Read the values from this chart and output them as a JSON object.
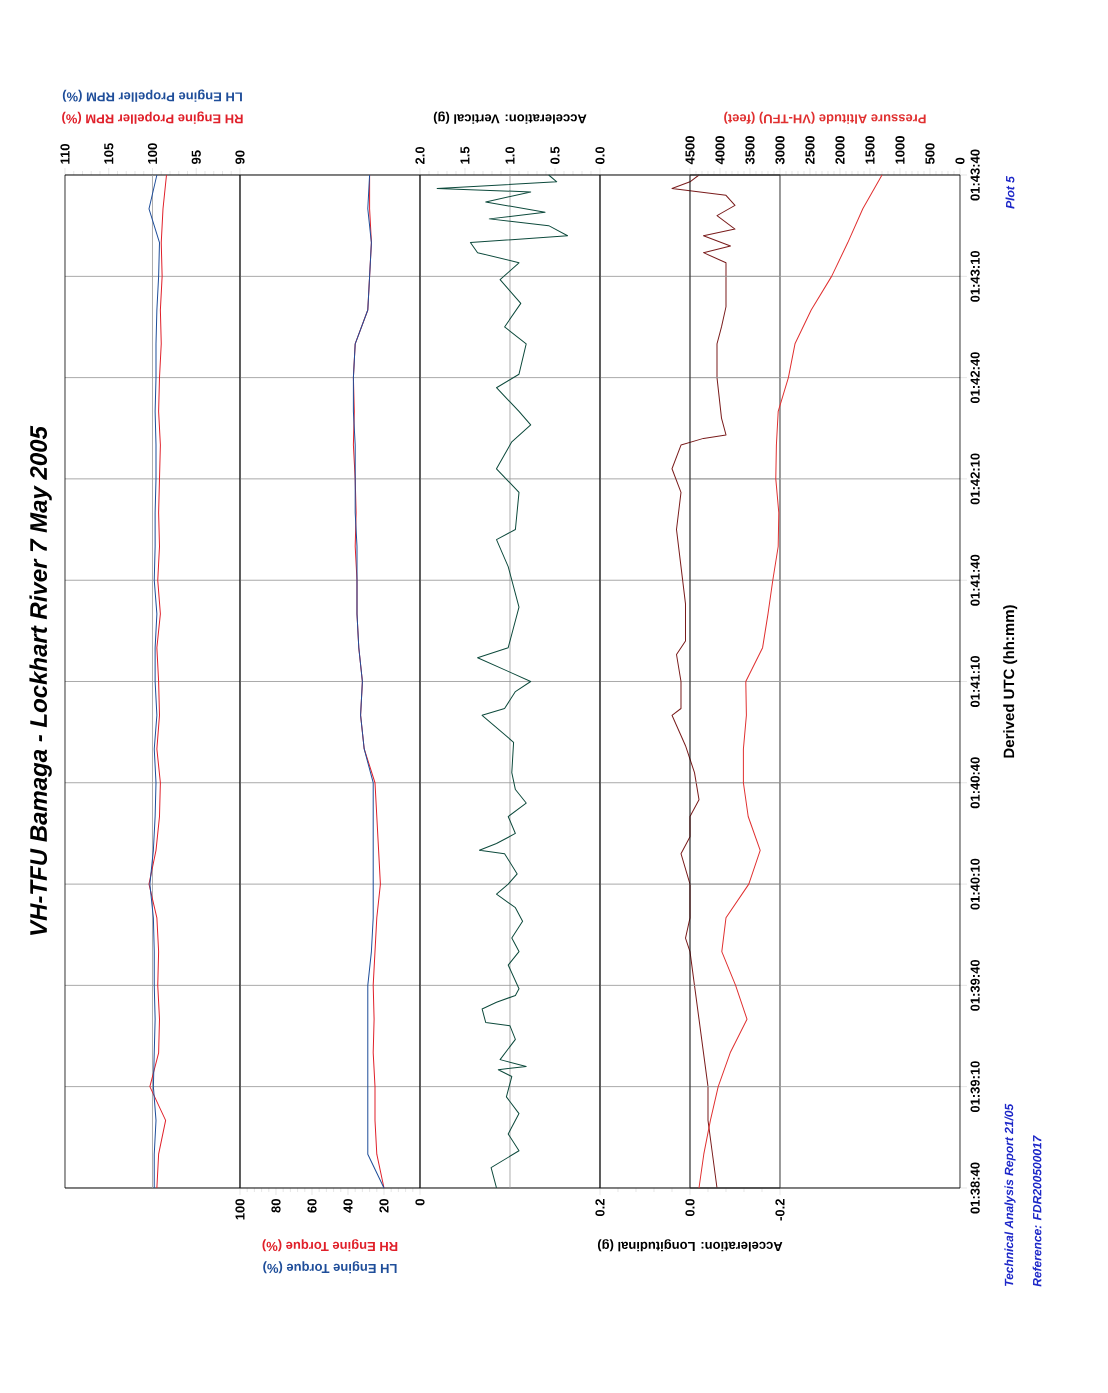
{
  "chart_data": [
    {
      "type": "line",
      "title": "VH-TFU    Bamaga  -  Lockhart River    7 May 2005",
      "grid": "y",
      "tick_labels": "x",
      "xlim": [
        110,
        90
      ],
      "xticks": [
        90,
        95,
        100,
        105,
        110
      ],
      "ylim": [
        1.64444,
        1.72778
      ],
      "yticks": [
        {
          "value": 1.64444,
          "label": null
        },
        {
          "value": 1.65278,
          "label": null
        },
        {
          "value": 1.66111,
          "label": null
        },
        {
          "value": 1.66944,
          "label": null
        },
        {
          "value": 1.67778,
          "label": null
        },
        {
          "value": 1.68611,
          "label": null
        },
        {
          "value": 1.69444,
          "label": null
        },
        {
          "value": 1.70278,
          "label": null
        },
        {
          "value": 1.71111,
          "label": null
        },
        {
          "value": 1.71944,
          "label": null
        },
        {
          "value": 1.72778,
          "label": null
        }
      ],
      "ref_lines": [
        {
          "axis": "x",
          "value": 100
        }
      ],
      "series": [
        {
          "name": "RH Engine Propeller RPM (%)",
          "color": "#e0202a",
          "x": [
            99.5,
            99.3,
            98.5,
            100.3,
            99.3,
            99.2,
            99.4,
            99.3,
            99.5,
            100.4,
            99.6,
            99.2,
            99.1,
            99.5,
            99.2,
            99.3,
            99.5,
            99.1,
            99.4,
            99.2,
            99.3,
            99.2,
            99.1,
            99.3,
            99.2,
            99.0,
            99.1,
            98.9,
            99.0,
            98.8,
            98.4
          ],
          "values": [
            1.64444,
            1.64722,
            1.65,
            1.65278,
            1.65556,
            1.65833,
            1.66111,
            1.66389,
            1.66667,
            1.66944,
            1.67222,
            1.675,
            1.67778,
            1.68056,
            1.68333,
            1.68611,
            1.68889,
            1.69167,
            1.69444,
            1.69722,
            1.7,
            1.70278,
            1.70556,
            1.70833,
            1.71111,
            1.71389,
            1.71667,
            1.71944,
            1.72222,
            1.725,
            1.72778
          ]
        },
        {
          "name": "LH Engine Propeller RPM (%)",
          "color": "#1f4e9a",
          "x": [
            99.8,
            99.8,
            99.6,
            99.9,
            99.8,
            99.7,
            99.8,
            99.8,
            99.9,
            100.3,
            99.9,
            99.7,
            99.6,
            99.8,
            99.5,
            99.7,
            99.7,
            99.5,
            99.8,
            99.7,
            99.7,
            99.6,
            99.6,
            99.7,
            99.6,
            99.6,
            99.5,
            99.3,
            99.2,
            100.4,
            99.5
          ],
          "values": [
            1.64444,
            1.64722,
            1.65,
            1.65278,
            1.65556,
            1.65833,
            1.66111,
            1.66389,
            1.66667,
            1.66944,
            1.67222,
            1.675,
            1.67778,
            1.68056,
            1.68333,
            1.68611,
            1.68889,
            1.69167,
            1.69444,
            1.69722,
            1.7,
            1.70278,
            1.70556,
            1.70833,
            1.71111,
            1.71389,
            1.71667,
            1.71944,
            1.72222,
            1.725,
            1.72778
          ]
        }
      ]
    },
    {
      "type": "line",
      "grid": "y",
      "tick_labels": "x",
      "xlim": [
        100,
        0
      ],
      "xticks": [
        0,
        20,
        40,
        60,
        80,
        100
      ],
      "ylim": [
        1.64444,
        1.72778
      ],
      "yticks": [
        {
          "value": 1.64444,
          "label": null
        },
        {
          "value": 1.65278,
          "label": null
        },
        {
          "value": 1.66111,
          "label": null
        },
        {
          "value": 1.66944,
          "label": null
        },
        {
          "value": 1.67778,
          "label": null
        },
        {
          "value": 1.68611,
          "label": null
        },
        {
          "value": 1.69444,
          "label": null
        },
        {
          "value": 1.70278,
          "label": null
        },
        {
          "value": 1.71111,
          "label": null
        },
        {
          "value": 1.71944,
          "label": null
        },
        {
          "value": 1.72778,
          "label": null
        }
      ],
      "series": [
        {
          "name": "RH Engine Torque (%)",
          "color": "#e0202a",
          "x": [
            20,
            24,
            25,
            25,
            26,
            25.5,
            26,
            25,
            24,
            22,
            23,
            24,
            25,
            31,
            33,
            32,
            34,
            35,
            35,
            36,
            35.5,
            36,
            37,
            36.5,
            37,
            36,
            29,
            28,
            27,
            28,
            28
          ],
          "values": [
            1.64444,
            1.64722,
            1.65,
            1.65278,
            1.65556,
            1.65833,
            1.66111,
            1.66389,
            1.66667,
            1.66944,
            1.67222,
            1.675,
            1.67778,
            1.68056,
            1.68333,
            1.68611,
            1.68889,
            1.69167,
            1.69444,
            1.69722,
            1.7,
            1.70278,
            1.70556,
            1.70833,
            1.71111,
            1.71389,
            1.71667,
            1.71944,
            1.72222,
            1.725,
            1.72778
          ]
        },
        {
          "name": "LH Engine Torque (%)",
          "color": "#1f4e9a",
          "x": [
            20,
            29,
            29,
            29,
            29,
            29,
            29,
            27,
            26,
            26,
            26,
            26,
            26,
            31,
            33,
            32,
            34,
            35,
            35,
            35,
            36,
            36,
            36,
            37,
            37,
            36,
            29,
            28,
            27,
            29,
            28
          ],
          "values": [
            1.64444,
            1.64722,
            1.65,
            1.65278,
            1.65556,
            1.65833,
            1.66111,
            1.66389,
            1.66667,
            1.66944,
            1.67222,
            1.675,
            1.67778,
            1.68056,
            1.68333,
            1.68611,
            1.68889,
            1.69167,
            1.69444,
            1.69722,
            1.7,
            1.70278,
            1.70556,
            1.70833,
            1.71111,
            1.71389,
            1.71667,
            1.71944,
            1.72222,
            1.725,
            1.72778
          ]
        }
      ]
    },
    {
      "type": "line",
      "grid": "y",
      "tick_labels": "x",
      "xlabel": "Acceleration:  Vertical  (g)",
      "xlim": [
        2,
        0
      ],
      "xticks": [
        {
          "value": 0,
          "label": "0.0"
        },
        {
          "value": 0.5,
          "label": "0.5"
        },
        {
          "value": 1,
          "label": "1.0"
        },
        {
          "value": 1.5,
          "label": "1.5"
        },
        {
          "value": 2,
          "label": "2.0"
        }
      ],
      "ylim": [
        1.64444,
        1.72778
      ],
      "yticks": [
        {
          "value": 1.64444,
          "label": null
        },
        {
          "value": 1.65278,
          "label": null
        },
        {
          "value": 1.66111,
          "label": null
        },
        {
          "value": 1.66944,
          "label": null
        },
        {
          "value": 1.67778,
          "label": null
        },
        {
          "value": 1.68611,
          "label": null
        },
        {
          "value": 1.69444,
          "label": null
        },
        {
          "value": 1.70278,
          "label": null
        },
        {
          "value": 1.71111,
          "label": null
        },
        {
          "value": 1.71944,
          "label": null
        },
        {
          "value": 1.72778,
          "label": null
        }
      ],
      "ref_lines": [
        {
          "axis": "x",
          "value": 1
        }
      ],
      "series": [
        {
          "color": "#0d4a3c",
          "x": [
            1.15,
            1.21,
            0.9,
            1.02,
            0.9,
            1.04,
            0.98,
            1.13,
            0.82,
            1.11,
            0.94,
            1.0,
            1.27,
            1.31,
            1.15,
            0.94,
            0.9,
            1.02,
            0.9,
            0.98,
            0.86,
            0.94,
            1.15,
            1.02,
            0.92,
            1.06,
            1.34,
            1.15,
            0.94,
            1.02,
            0.82,
            0.94,
            0.98,
            0.96,
            1.31,
            1.06,
            0.94,
            0.77,
            1.02,
            1.36,
            1.02,
            0.9,
            1.02,
            1.15,
            0.94,
            0.9,
            1.15,
            0.98,
            0.77,
            0.9,
            1.15,
            0.9,
            0.82,
            1.06,
            0.88,
            1.11,
            0.9,
            1.36,
            1.44,
            0.36,
            0.57,
            1.23,
            0.61,
            1.27,
            0.77,
            1.81,
            0.48,
            0.57
          ],
          "values": [
            1.64444,
            1.64611,
            1.6475,
            1.64889,
            1.65056,
            1.65194,
            1.65361,
            1.65417,
            1.65444,
            1.655,
            1.65667,
            1.65778,
            1.65806,
            1.65917,
            1.65972,
            1.66028,
            1.66083,
            1.66278,
            1.66389,
            1.665,
            1.66639,
            1.6675,
            1.66861,
            1.66944,
            1.67028,
            1.67194,
            1.67222,
            1.67278,
            1.67361,
            1.675,
            1.67611,
            1.67722,
            1.67861,
            1.68111,
            1.68333,
            1.68389,
            1.68528,
            1.68611,
            1.68694,
            1.68806,
            1.68889,
            1.69222,
            1.69556,
            1.69778,
            1.69861,
            1.70167,
            1.70361,
            1.70583,
            1.70722,
            1.70833,
            1.71028,
            1.71139,
            1.71389,
            1.71528,
            1.71722,
            1.71917,
            1.72056,
            1.72139,
            1.72222,
            1.72278,
            1.72361,
            1.72417,
            1.72472,
            1.72556,
            1.72639,
            1.72667,
            1.72722,
            1.72778
          ]
        }
      ]
    },
    {
      "type": "line",
      "grid": "y",
      "tick_labels": "x",
      "xlabel": "Acceleration:  Longitudinal  (g)",
      "xlim": [
        0.2,
        -0.2
      ],
      "xticks": [
        {
          "value": -0.2,
          "label": "-0.2"
        },
        {
          "value": 0,
          "label": "0.0"
        },
        {
          "value": 0.2,
          "label": "0.2"
        }
      ],
      "ylim": [
        1.64444,
        1.72778
      ],
      "yticks": [
        {
          "value": 1.64444,
          "label": null
        },
        {
          "value": 1.65278,
          "label": null
        },
        {
          "value": 1.66111,
          "label": null
        },
        {
          "value": 1.66944,
          "label": null
        },
        {
          "value": 1.67778,
          "label": null
        },
        {
          "value": 1.68611,
          "label": null
        },
        {
          "value": 1.69444,
          "label": null
        },
        {
          "value": 1.70278,
          "label": null
        },
        {
          "value": 1.71111,
          "label": null
        },
        {
          "value": 1.71944,
          "label": null
        },
        {
          "value": 1.72778,
          "label": null
        }
      ],
      "ref_lines": [
        {
          "axis": "x",
          "value": 0
        }
      ],
      "series": [
        {
          "color": "#7a1c1c",
          "x": [
            -0.06,
            -0.05,
            -0.04,
            -0.04,
            -0.03,
            -0.02,
            -0.01,
            0.0,
            0.01,
            0.0,
            0.0,
            0.02,
            0.0,
            0.0,
            -0.02,
            -0.01,
            0.01,
            0.04,
            0.02,
            0.02,
            0.03,
            0.01,
            0.01,
            0.02,
            0.03,
            0.02,
            0.04,
            0.02,
            -0.03,
            -0.08,
            -0.07,
            -0.06,
            -0.06,
            -0.07,
            -0.08,
            -0.08,
            -0.03,
            -0.09,
            -0.03,
            -0.1,
            -0.06,
            -0.1,
            -0.08,
            0.04,
            0.0,
            -0.02
          ],
          "values": [
            1.64444,
            1.64722,
            1.65,
            1.65278,
            1.65556,
            1.65833,
            1.66111,
            1.66389,
            1.665,
            1.66667,
            1.66944,
            1.67194,
            1.67333,
            1.675,
            1.67639,
            1.67861,
            1.68083,
            1.68333,
            1.68389,
            1.68611,
            1.68833,
            1.68944,
            1.6925,
            1.69556,
            1.69861,
            1.70167,
            1.70361,
            1.70556,
            1.70611,
            1.70639,
            1.70778,
            1.71111,
            1.71389,
            1.71528,
            1.71694,
            1.72056,
            1.72139,
            1.72194,
            1.72278,
            1.72333,
            1.72444,
            1.72528,
            1.72611,
            1.72667,
            1.72722,
            1.72778
          ]
        }
      ]
    },
    {
      "type": "line",
      "grid": "y",
      "ylabel": "Derived  UTC  (hh:mm)",
      "annotations": [
        "Technical  Analysis  Report  21/05",
        "Reference:  FDR200500017",
        "Plot  5"
      ],
      "xlim": [
        4500,
        0
      ],
      "xticks": [
        0,
        500,
        1000,
        1500,
        2000,
        2500,
        3000,
        3500,
        4000,
        4500
      ],
      "ylim": [
        1.64444,
        1.72778
      ],
      "yticks": [
        {
          "value": 1.64444,
          "label": "01:38:40"
        },
        {
          "value": 1.65278,
          "label": "01:39:10"
        },
        {
          "value": 1.66111,
          "label": "01:39:40"
        },
        {
          "value": 1.66944,
          "label": "01:40:10"
        },
        {
          "value": 1.67778,
          "label": "01:40:40"
        },
        {
          "value": 1.68611,
          "label": "01:41:10"
        },
        {
          "value": 1.69444,
          "label": "01:41:40"
        },
        {
          "value": 1.70278,
          "label": "01:42:10"
        },
        {
          "value": 1.71111,
          "label": "01:42:40"
        },
        {
          "value": 1.71944,
          "label": "01:43:10"
        },
        {
          "value": 1.72778,
          "label": "01:43:40"
        }
      ],
      "series": [
        {
          "name": "Pressure  Altitude  (VH-TFU)  (feet)",
          "color": "#e03030",
          "x": [
            4350,
            4270,
            4160,
            4030,
            3830,
            3550,
            3740,
            3970,
            3900,
            3520,
            3330,
            3530,
            3610,
            3610,
            3560,
            3570,
            3290,
            3200,
            3120,
            3030,
            3020,
            3070,
            3060,
            3030,
            2860,
            2750,
            2480,
            2140,
            1870,
            1620,
            1300
          ],
          "values": [
            1.64444,
            1.64722,
            1.65,
            1.65278,
            1.65556,
            1.65833,
            1.66111,
            1.66389,
            1.66667,
            1.66944,
            1.67222,
            1.675,
            1.67778,
            1.68056,
            1.68333,
            1.68611,
            1.68889,
            1.69167,
            1.69444,
            1.69722,
            1.7,
            1.70278,
            1.70556,
            1.70833,
            1.71111,
            1.71389,
            1.71667,
            1.71944,
            1.72222,
            1.725,
            1.72778
          ]
        }
      ]
    }
  ]
}
